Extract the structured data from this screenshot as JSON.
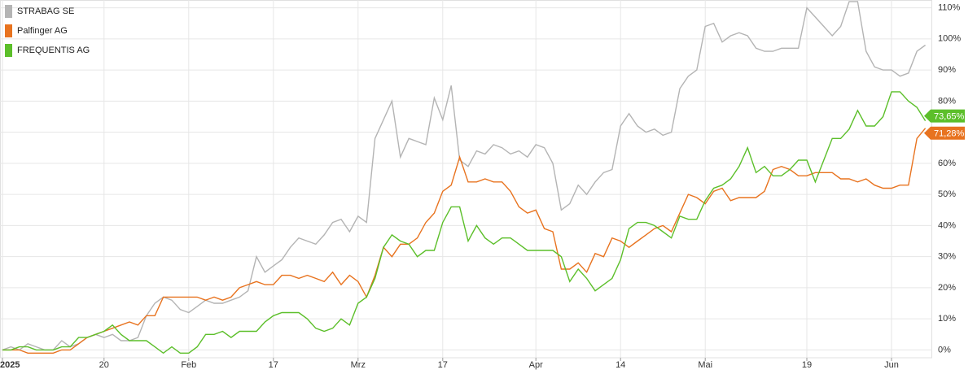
{
  "chart_data": {
    "type": "line",
    "categories": [
      "2025",
      null,
      null,
      null,
      null,
      null,
      null,
      null,
      null,
      null,
      null,
      null,
      "20",
      null,
      null,
      null,
      null,
      null,
      null,
      null,
      null,
      null,
      "Feb",
      null,
      null,
      null,
      null,
      null,
      null,
      null,
      null,
      null,
      "17",
      null,
      null,
      null,
      null,
      null,
      null,
      null,
      null,
      null,
      "Mrz",
      null,
      null,
      null,
      null,
      null,
      null,
      null,
      null,
      null,
      "17",
      null,
      null,
      null,
      null,
      null,
      null,
      null,
      null,
      null,
      null,
      "Apr",
      null,
      null,
      null,
      null,
      null,
      null,
      null,
      null,
      null,
      "14",
      null,
      null,
      null,
      null,
      null,
      null,
      null,
      null,
      null,
      "Mai",
      null,
      null,
      null,
      null,
      null,
      null,
      null,
      null,
      null,
      null,
      null,
      "19",
      null,
      null,
      null,
      null,
      null,
      null,
      null,
      null,
      null,
      "Jun",
      null,
      null,
      null,
      null
    ],
    "series": [
      {
        "name": "STRABAG SE",
        "color": "#b4b4b4",
        "values": [
          0,
          1,
          0,
          2,
          1,
          0,
          0,
          3,
          1,
          2,
          4,
          5,
          4,
          5,
          3,
          3,
          4,
          11,
          15,
          17,
          16,
          13,
          12,
          14,
          16,
          15,
          15,
          16,
          17,
          19,
          30,
          25,
          27,
          29,
          33,
          36,
          35,
          34,
          37,
          41,
          42,
          38,
          43,
          41,
          68,
          74,
          80,
          62,
          68,
          67,
          66,
          81,
          74,
          85,
          61,
          59,
          64,
          63,
          66,
          65,
          63,
          64,
          62,
          66,
          65,
          60,
          45,
          47,
          53,
          50,
          54,
          57,
          58,
          72,
          76,
          72,
          70,
          71,
          69,
          70,
          84,
          88,
          90,
          104,
          105,
          99,
          101,
          102,
          101,
          97,
          96,
          96,
          97,
          97,
          97,
          110,
          107,
          104,
          101,
          104,
          112,
          112,
          96,
          91,
          90,
          90,
          88,
          89,
          96,
          98
        ]
      },
      {
        "name": "Palfinger AG",
        "color": "#e8731f",
        "end_label": "71,28%",
        "values": [
          0,
          0,
          0,
          -1,
          -1,
          -1,
          -1,
          0,
          0,
          2,
          4,
          5,
          6,
          7,
          8,
          9,
          8,
          11,
          11,
          17,
          17,
          17,
          17,
          17,
          16,
          17,
          16,
          17,
          20,
          21,
          22,
          21,
          21,
          24,
          24,
          23,
          24,
          23,
          22,
          25,
          21,
          24,
          22,
          17,
          24,
          33,
          30,
          34,
          34,
          36,
          41,
          44,
          51,
          53,
          62,
          54,
          54,
          55,
          54,
          54,
          51,
          46,
          44,
          45,
          39,
          38,
          26,
          26,
          28,
          25,
          31,
          30,
          36,
          35,
          33,
          35,
          37,
          39,
          40,
          38,
          44,
          50,
          49,
          47,
          51,
          52,
          48,
          49,
          49,
          49,
          51,
          58,
          59,
          58,
          56,
          56,
          57,
          57,
          57,
          55,
          55,
          54,
          55,
          53,
          52,
          52,
          53,
          53,
          68,
          71.28
        ]
      },
      {
        "name": "FREQUENTIS AG",
        "color": "#5cbf2a",
        "end_label": "73,65%",
        "values": [
          0,
          0,
          1,
          1,
          0,
          0,
          0,
          1,
          1,
          4,
          4,
          5,
          6,
          8,
          5,
          3,
          3,
          3,
          1,
          -1,
          1,
          -1,
          -1,
          1,
          5,
          5,
          6,
          4,
          6,
          6,
          6,
          9,
          11,
          12,
          12,
          12,
          10,
          7,
          6,
          7,
          10,
          8,
          15,
          17,
          23,
          33,
          37,
          35,
          34,
          30,
          32,
          32,
          41,
          46,
          46,
          35,
          40,
          36,
          34,
          36,
          36,
          34,
          32,
          32,
          32,
          32,
          30,
          22,
          26,
          23,
          19,
          21,
          23,
          29,
          39,
          41,
          41,
          40,
          38,
          36,
          43,
          42,
          42,
          48,
          52,
          53,
          55,
          59,
          65,
          57,
          59,
          56,
          56,
          58,
          61,
          61,
          54,
          61,
          68,
          68,
          71,
          77,
          72,
          72,
          75,
          83,
          83,
          80,
          78,
          73.65
        ]
      }
    ],
    "ylim": [
      -2.5,
      112.5
    ],
    "yticks": [
      {
        "value": 0,
        "label": "0%"
      },
      {
        "value": 10,
        "label": "10%"
      },
      {
        "value": 20,
        "label": "20%"
      },
      {
        "value": 30,
        "label": "30%"
      },
      {
        "value": 40,
        "label": "40%"
      },
      {
        "value": 50,
        "label": "50%"
      },
      {
        "value": 60,
        "label": "60%"
      },
      {
        "value": 70,
        "label": "70%"
      },
      {
        "value": 80,
        "label": "80%"
      },
      {
        "value": 90,
        "label": "90%"
      },
      {
        "value": 100,
        "label": "100%"
      },
      {
        "value": 110,
        "label": "110%"
      }
    ],
    "grid": true,
    "legend": "top-left"
  }
}
